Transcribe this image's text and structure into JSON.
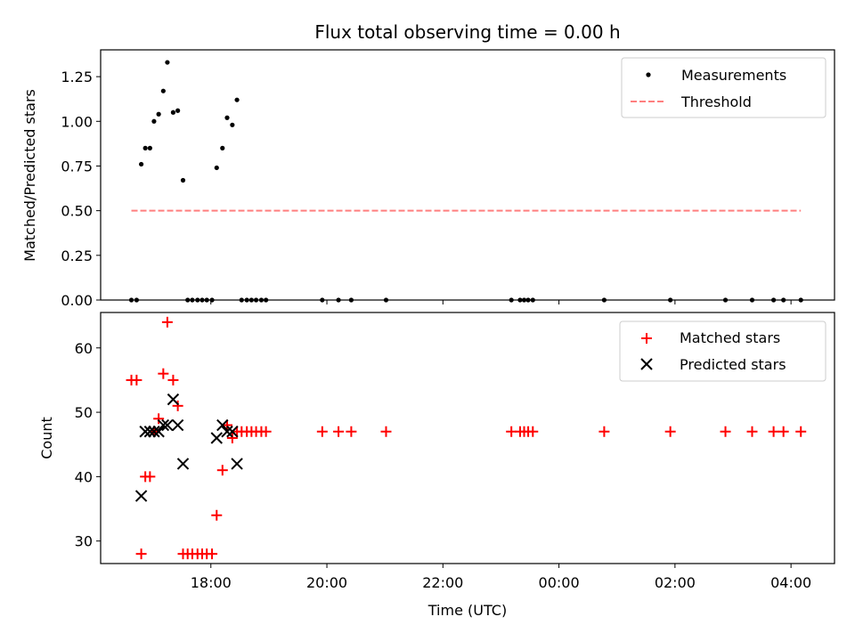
{
  "chart_data": [
    {
      "type": "scatter",
      "title": "Flux total observing time = 0.00 h",
      "xlabel": "",
      "ylabel": "Matched/Predicted stars",
      "ylim": [
        0,
        1.4
      ],
      "yticks": [
        "0.00",
        "0.25",
        "0.50",
        "0.75",
        "1.00",
        "1.25"
      ],
      "ytick_values": [
        0,
        0.25,
        0.5,
        0.75,
        1.0,
        1.25
      ],
      "xlim_hours": [
        16.1,
        28.75
      ],
      "legend": {
        "position": "top-right",
        "entries": [
          "Measurements",
          "Threshold"
        ]
      },
      "series": [
        {
          "name": "Measurements",
          "color": "#000000",
          "marker": "dot",
          "points": [
            [
              16.63,
              0
            ],
            [
              16.72,
              0
            ],
            [
              16.8,
              0.76
            ],
            [
              16.87,
              0.85
            ],
            [
              16.95,
              0.85
            ],
            [
              17.02,
              1.0
            ],
            [
              17.1,
              1.04
            ],
            [
              17.18,
              1.17
            ],
            [
              17.25,
              1.33
            ],
            [
              17.35,
              1.05
            ],
            [
              17.43,
              1.06
            ],
            [
              17.52,
              0.67
            ],
            [
              17.6,
              0
            ],
            [
              17.68,
              0
            ],
            [
              17.77,
              0
            ],
            [
              17.85,
              0
            ],
            [
              17.93,
              0
            ],
            [
              18.02,
              0
            ],
            [
              18.1,
              0.74
            ],
            [
              18.2,
              0.85
            ],
            [
              18.28,
              1.02
            ],
            [
              18.37,
              0.98
            ],
            [
              18.45,
              1.12
            ],
            [
              18.53,
              0
            ],
            [
              18.62,
              0
            ],
            [
              18.7,
              0
            ],
            [
              18.78,
              0
            ],
            [
              18.87,
              0
            ],
            [
              18.95,
              0
            ],
            [
              19.92,
              0
            ],
            [
              20.2,
              0
            ],
            [
              20.42,
              0
            ],
            [
              21.02,
              0
            ],
            [
              23.18,
              0
            ],
            [
              23.33,
              0
            ],
            [
              23.4,
              0
            ],
            [
              23.47,
              0
            ],
            [
              23.55,
              0
            ],
            [
              24.78,
              0
            ],
            [
              25.92,
              0
            ],
            [
              26.87,
              0
            ],
            [
              27.33,
              0
            ],
            [
              27.7,
              0
            ],
            [
              27.87,
              0
            ],
            [
              28.17,
              0
            ]
          ]
        },
        {
          "name": "Threshold",
          "color": "#ff7f7f",
          "style": "dashed",
          "points": [
            [
              16.63,
              0.5
            ],
            [
              28.17,
              0.5
            ]
          ]
        }
      ]
    },
    {
      "type": "scatter",
      "title": "",
      "xlabel": "Time (UTC)",
      "ylabel": "Count",
      "ylim": [
        26.5,
        65.5
      ],
      "yticks": [
        "30",
        "40",
        "50",
        "60"
      ],
      "ytick_values": [
        30,
        40,
        50,
        60
      ],
      "xlim_hours": [
        16.1,
        28.75
      ],
      "xticks": [
        "18:00",
        "20:00",
        "22:00",
        "00:00",
        "02:00",
        "04:00"
      ],
      "xtick_values": [
        18,
        20,
        22,
        24,
        26,
        28
      ],
      "legend": {
        "position": "top-right",
        "entries": [
          "Matched stars",
          "Predicted stars"
        ]
      },
      "series": [
        {
          "name": "Matched stars",
          "color": "#ff0000",
          "marker": "plus",
          "points": [
            [
              16.63,
              55
            ],
            [
              16.72,
              55
            ],
            [
              16.8,
              28
            ],
            [
              16.87,
              40
            ],
            [
              16.95,
              40
            ],
            [
              17.02,
              47
            ],
            [
              17.1,
              49
            ],
            [
              17.18,
              56
            ],
            [
              17.25,
              64
            ],
            [
              17.35,
              55
            ],
            [
              17.43,
              51
            ],
            [
              17.52,
              28
            ],
            [
              17.6,
              28
            ],
            [
              17.68,
              28
            ],
            [
              17.77,
              28
            ],
            [
              17.85,
              28
            ],
            [
              17.93,
              28
            ],
            [
              18.02,
              28
            ],
            [
              18.1,
              34
            ],
            [
              18.2,
              41
            ],
            [
              18.28,
              48
            ],
            [
              18.37,
              46
            ],
            [
              18.45,
              47
            ],
            [
              18.53,
              47
            ],
            [
              18.62,
              47
            ],
            [
              18.7,
              47
            ],
            [
              18.78,
              47
            ],
            [
              18.87,
              47
            ],
            [
              18.95,
              47
            ],
            [
              19.92,
              47
            ],
            [
              20.2,
              47
            ],
            [
              20.42,
              47
            ],
            [
              21.02,
              47
            ],
            [
              23.18,
              47
            ],
            [
              23.33,
              47
            ],
            [
              23.4,
              47
            ],
            [
              23.47,
              47
            ],
            [
              23.55,
              47
            ],
            [
              24.78,
              47
            ],
            [
              25.92,
              47
            ],
            [
              26.87,
              47
            ],
            [
              27.33,
              47
            ],
            [
              27.7,
              47
            ],
            [
              27.87,
              47
            ],
            [
              28.17,
              47
            ]
          ]
        },
        {
          "name": "Predicted stars",
          "color": "#000000",
          "marker": "x",
          "points": [
            [
              16.8,
              37
            ],
            [
              16.87,
              47
            ],
            [
              16.95,
              47
            ],
            [
              17.02,
              47
            ],
            [
              17.1,
              47
            ],
            [
              17.18,
              48
            ],
            [
              17.25,
              48
            ],
            [
              17.35,
              52
            ],
            [
              17.43,
              48
            ],
            [
              17.52,
              42
            ],
            [
              18.1,
              46
            ],
            [
              18.2,
              48
            ],
            [
              18.28,
              47
            ],
            [
              18.37,
              47
            ],
            [
              18.45,
              42
            ]
          ]
        }
      ]
    }
  ]
}
